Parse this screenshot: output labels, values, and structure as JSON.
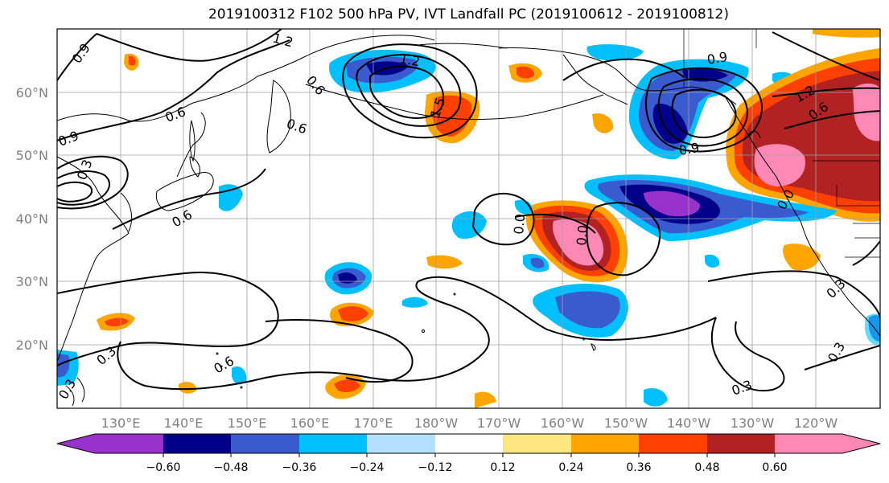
{
  "title": "2019100312 F102 500 hPa PV, IVT Landfall PC (2019100612 - 2019100812)",
  "map": {
    "lat_labels": [
      "60°N",
      "50°N",
      "40°N",
      "30°N",
      "20°N"
    ],
    "lon_labels": [
      "130°E",
      "140°E",
      "150°E",
      "160°E",
      "170°E",
      "180°W",
      "170°W",
      "160°W",
      "150°W",
      "140°W",
      "130°W",
      "120°W"
    ],
    "contour_labels": [
      "1.2",
      "0.9",
      "0.6",
      "0.6",
      "0.6",
      "0.9",
      "0.3",
      "0.6",
      "1.2",
      "1.5",
      "0.9",
      "1.2",
      "0.6",
      "0.9",
      "0.0",
      "0.0",
      "0.0",
      "0.3",
      "0.6",
      "0.3",
      "0.3",
      "0.3",
      "0.3"
    ],
    "colors": {
      "text": "#000000",
      "axis_label": "#808080",
      "grid": "#a0a0a0",
      "coast": "#000000",
      "contour": "#000000"
    }
  },
  "colorbar": {
    "tick_labels": [
      "−0.60",
      "−0.48",
      "−0.36",
      "−0.24",
      "−0.12",
      "0.12",
      "0.24",
      "0.36",
      "0.48",
      "0.60"
    ],
    "colors": [
      "#9932cc",
      "#00008b",
      "#3a5bcf",
      "#00bfff",
      "#b3e0ff",
      "#ffffff",
      "#ffe680",
      "#ffa500",
      "#ff4000",
      "#b22222",
      "#ff88b4"
    ]
  }
}
